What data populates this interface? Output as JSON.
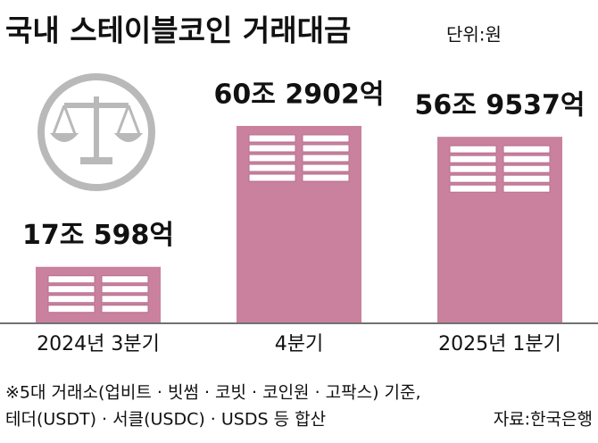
{
  "chart_data": {
    "type": "bar",
    "title": "국내 스테이블코인 거래대금",
    "unit": "단위:원",
    "categories": [
      "2024년 3분기",
      "4분기",
      "2025년 1분기"
    ],
    "values": [
      170598,
      602902,
      569537
    ],
    "value_labels": [
      "17조 598억",
      "60조 2902억",
      "56조 9537억"
    ],
    "color": "#c9819e",
    "footnotes": [
      "※5대 거래소(업비트 · 빗썸 · 코빗 · 코인원 · 고팍스) 기준,",
      "테더(USDT) · 서클(USDC) · USDS 등 합산"
    ],
    "source": "자료:한국은행"
  }
}
